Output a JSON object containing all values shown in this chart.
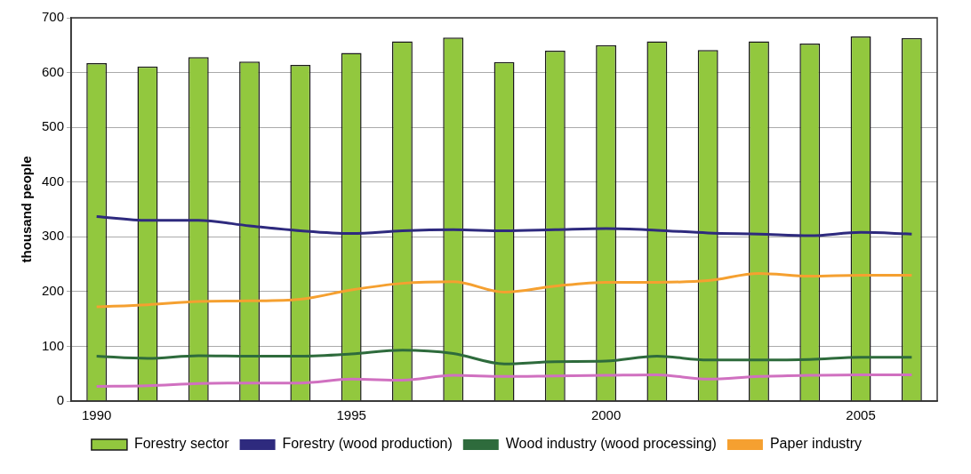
{
  "chart_data": {
    "type": "bar",
    "ylabel": "thousand people",
    "categories": [
      "1990",
      null,
      null,
      null,
      null,
      "1995",
      null,
      null,
      null,
      null,
      "2000",
      null,
      null,
      null,
      null,
      "2005",
      null
    ],
    "series": [
      {
        "name": "Forestry sector",
        "color": "#92c83e",
        "values": [
          617,
          611,
          628,
          620,
          614,
          636,
          657,
          664,
          619,
          640,
          650,
          657,
          641,
          657,
          653,
          666,
          663
        ]
      },
      {
        "name": "Forestry (wood production)",
        "type": "line",
        "color": "#2e2a7e",
        "values": [
          337,
          330,
          330,
          320,
          311,
          306,
          311,
          313,
          311,
          313,
          315,
          312,
          307,
          305,
          302,
          308,
          305
        ]
      },
      {
        "name": "Wood industry (wood processing)",
        "type": "line",
        "color": "#2e6b3c",
        "values": [
          82,
          78,
          83,
          82,
          82,
          86,
          93,
          87,
          68,
          72,
          73,
          82,
          75,
          75,
          76,
          80,
          80
        ]
      },
      {
        "name": "Paper industry",
        "type": "line",
        "color": "#f5a030",
        "values": [
          172,
          176,
          182,
          183,
          186,
          203,
          215,
          218,
          199,
          210,
          217,
          217,
          220,
          233,
          228,
          230,
          230
        ]
      },
      {
        "type": "line",
        "color": "#d070c0",
        "values": [
          27,
          28,
          32,
          33,
          33,
          40,
          38,
          47,
          45,
          46,
          47,
          48,
          40,
          45,
          47,
          48,
          48
        ]
      }
    ],
    "ylim": [
      0,
      700
    ],
    "yticks": [
      0,
      100,
      200,
      300,
      400,
      500,
      600,
      700
    ],
    "grid": "y",
    "legend": "bottom",
    "marker": "none",
    "line_style": "solid"
  }
}
